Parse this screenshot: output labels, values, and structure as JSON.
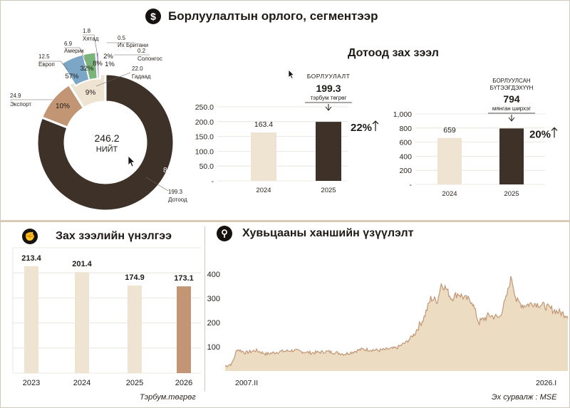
{
  "header": {
    "title": "Борлуулалтын орлого, сегментээр",
    "icon": "dollar-icon"
  },
  "donut": {
    "center_value": "246.2",
    "center_label": "НИЙТ",
    "colors": [
      "#3d3128",
      "#c29674",
      "#efe4d2",
      "#7ba6c5",
      "#7bb47b",
      "#b7a6d6",
      "#f1cf7e",
      "#e7a85f"
    ],
    "segments": [
      {
        "name": "Дотоод",
        "value": 199.3,
        "pct": "81%",
        "color": "#3d3128",
        "text_color": "#ffffff"
      },
      {
        "name": "Экспорт",
        "value": 24.9,
        "pct": "10%",
        "color": "#c29674",
        "text_color": "#1e1a16"
      },
      {
        "name": "Гадаад",
        "value": 22.0,
        "pct": "9%",
        "color": "#efe4d2",
        "text_color": "#1e1a16"
      },
      {
        "name": "Европ",
        "value": 12.5,
        "pct": "57%",
        "color": "#7ba6c5",
        "text_color": "#1e1a16"
      },
      {
        "name": "Америк",
        "value": 6.9,
        "pct": "32%",
        "color": "#7bb47b",
        "text_color": "#1e1a16"
      },
      {
        "name": "Хятад",
        "value": 1.8,
        "pct": "8%",
        "color": "#b7a6d6",
        "text_color": "#1e1a16"
      },
      {
        "name": "Их Британи",
        "value": 0.5,
        "pct": "2%",
        "color": "#f1cf7e",
        "text_color": "#1e1a16"
      },
      {
        "name": "Солонгос",
        "value": 0.2,
        "pct": "1%",
        "color": "#e7a85f",
        "text_color": "#1e1a16"
      }
    ],
    "value_labels": [
      "199.3",
      "24.9",
      "22.0",
      "12.5",
      "6.9",
      "1.8",
      "0.5",
      "0.2"
    ]
  },
  "domestic": {
    "title": "Дотоод зах зээл"
  },
  "chart_data": [
    {
      "type": "bar",
      "name_label": "БОРЛУУЛАЛТ",
      "highlight_value": "199.3",
      "unit": "тэрбум төгрөг",
      "categories": [
        "2024",
        "2025"
      ],
      "values": [
        163.4,
        199.3
      ],
      "value_labels": [
        "163.4",
        ""
      ],
      "colors": [
        "#efe4d2",
        "#3d3128"
      ],
      "growth": "22%",
      "ylim": [
        0,
        250
      ],
      "yticks": [
        0,
        50,
        100,
        150,
        200,
        250
      ],
      "ytick_labels": [
        "-",
        "50.0",
        "100.0",
        "150.0",
        "200.0",
        "250.0"
      ]
    },
    {
      "type": "bar",
      "name_label_1": "БОРЛУУЛСАН",
      "name_label_2": "БҮТЭЭГДЭХҮҮН",
      "highlight_value": "794",
      "unit": "мянган ширхэг",
      "categories": [
        "2024",
        "2025"
      ],
      "values": [
        659,
        794
      ],
      "value_labels": [
        "659",
        ""
      ],
      "colors": [
        "#efe4d2",
        "#3d3128"
      ],
      "growth": "20%",
      "ylim": [
        0,
        1000
      ],
      "yticks": [
        0,
        200,
        400,
        600,
        800,
        1000
      ],
      "ytick_labels": [
        "-",
        "200",
        "400",
        "600",
        "800",
        "1,000"
      ]
    },
    {
      "type": "bar",
      "title": "Зах зээлийн үнэлгээ",
      "icon": "fist-icon",
      "categories": [
        "2023",
        "2024",
        "2025",
        "2026"
      ],
      "values": [
        213.4,
        201.4,
        174.9,
        173.1
      ],
      "value_labels": [
        "213.4",
        "201.4",
        "174.9",
        "173.1"
      ],
      "colors": [
        "#efe4d2",
        "#efe4d2",
        "#efe4d2",
        "#c29674"
      ],
      "ylim": [
        0,
        250
      ],
      "footnote": "Тэрбум.төгрөг"
    },
    {
      "type": "area",
      "title": "Хувьцааны ханшийн үзүүлэлт",
      "icon": "search-icon",
      "ylim": [
        0,
        400
      ],
      "yticks": [
        100,
        200,
        300,
        400
      ],
      "ytick_labels": [
        "100",
        "200",
        "300",
        "400"
      ],
      "x_labels": [
        "2007.II",
        "2026.I"
      ],
      "source": "Эх сурвалж : MSE",
      "fill": "#ecdcc2",
      "stroke": "#c29674",
      "keypoints": [
        [
          0,
          20
        ],
        [
          0.02,
          30
        ],
        [
          0.035,
          90
        ],
        [
          0.06,
          75
        ],
        [
          0.09,
          85
        ],
        [
          0.12,
          70
        ],
        [
          0.16,
          80
        ],
        [
          0.2,
          85
        ],
        [
          0.25,
          75
        ],
        [
          0.3,
          80
        ],
        [
          0.35,
          70
        ],
        [
          0.4,
          90
        ],
        [
          0.45,
          85
        ],
        [
          0.5,
          95
        ],
        [
          0.53,
          120
        ],
        [
          0.55,
          150
        ],
        [
          0.58,
          220
        ],
        [
          0.6,
          300
        ],
        [
          0.62,
          290
        ],
        [
          0.63,
          360
        ],
        [
          0.645,
          340
        ],
        [
          0.66,
          300
        ],
        [
          0.68,
          320
        ],
        [
          0.7,
          300
        ],
        [
          0.72,
          290
        ],
        [
          0.74,
          200
        ],
        [
          0.77,
          230
        ],
        [
          0.8,
          220
        ],
        [
          0.82,
          300
        ],
        [
          0.835,
          390
        ],
        [
          0.85,
          290
        ],
        [
          0.87,
          270
        ],
        [
          0.9,
          280
        ],
        [
          0.93,
          270
        ],
        [
          0.96,
          250
        ],
        [
          0.98,
          240
        ],
        [
          1.0,
          230
        ]
      ]
    }
  ]
}
